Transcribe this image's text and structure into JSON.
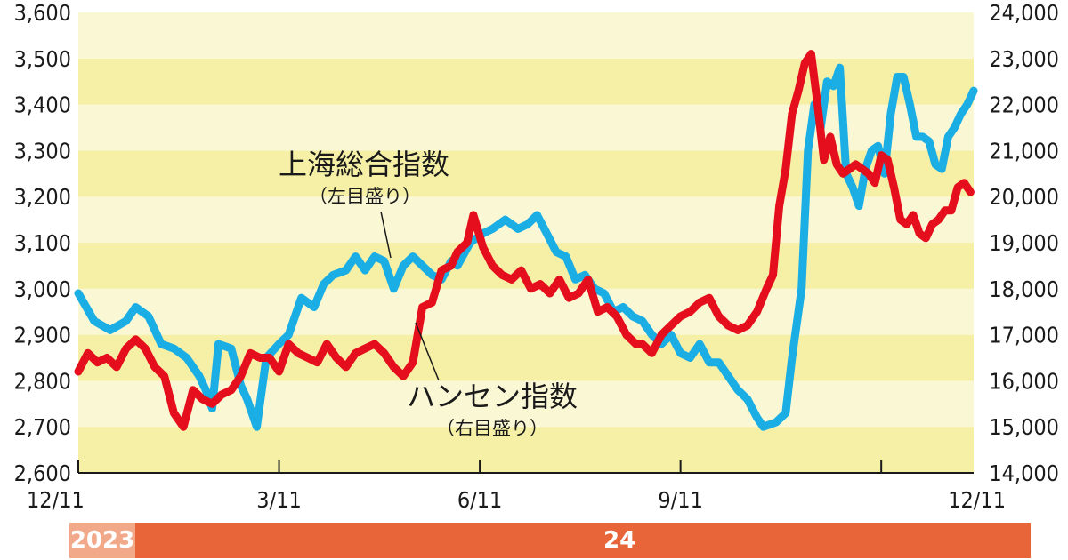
{
  "chart_data": {
    "type": "line",
    "background_bands": [
      "#f5f0a6",
      "#faf7d4"
    ],
    "x_ticks": [
      "12/11",
      "3/11",
      "6/11",
      "9/11",
      "12/11"
    ],
    "x_tick_index": [
      0,
      63,
      126,
      189,
      252
    ],
    "y_left": {
      "min": 2600,
      "max": 3600,
      "step": 100,
      "ticks": [
        "2,600",
        "2,700",
        "2,800",
        "2,900",
        "3,000",
        "3,100",
        "3,200",
        "3,300",
        "3,400",
        "3,500",
        "3,600"
      ]
    },
    "y_right": {
      "min": 14000,
      "max": 24000,
      "step": 1000,
      "ticks": [
        "14,000",
        "15,000",
        "16,000",
        "17,000",
        "18,000",
        "19,000",
        "20,000",
        "21,000",
        "22,000",
        "23,000",
        "24,000"
      ]
    },
    "series": [
      {
        "name": "上海総合指数",
        "axis": "left",
        "color": "#1aaee5",
        "points": [
          [
            0,
            2990
          ],
          [
            5,
            2930
          ],
          [
            10,
            2910
          ],
          [
            15,
            2930
          ],
          [
            18,
            2960
          ],
          [
            22,
            2940
          ],
          [
            26,
            2880
          ],
          [
            30,
            2870
          ],
          [
            34,
            2850
          ],
          [
            38,
            2810
          ],
          [
            40,
            2780
          ],
          [
            42,
            2740
          ],
          [
            44,
            2880
          ],
          [
            48,
            2870
          ],
          [
            51,
            2790
          ],
          [
            53,
            2760
          ],
          [
            56,
            2700
          ],
          [
            59,
            2850
          ],
          [
            63,
            2880
          ],
          [
            66,
            2900
          ],
          [
            70,
            2980
          ],
          [
            74,
            2960
          ],
          [
            77,
            3010
          ],
          [
            80,
            3030
          ],
          [
            84,
            3040
          ],
          [
            87,
            3070
          ],
          [
            90,
            3040
          ],
          [
            93,
            3070
          ],
          [
            96,
            3060
          ],
          [
            99,
            3000
          ],
          [
            102,
            3050
          ],
          [
            105,
            3070
          ],
          [
            108,
            3050
          ],
          [
            111,
            3030
          ],
          [
            114,
            3020
          ],
          [
            117,
            3060
          ],
          [
            119,
            3050
          ],
          [
            123,
            3100
          ],
          [
            127,
            3120
          ],
          [
            130,
            3130
          ],
          [
            134,
            3150
          ],
          [
            138,
            3130
          ],
          [
            141,
            3140
          ],
          [
            144,
            3160
          ],
          [
            147,
            3120
          ],
          [
            150,
            3080
          ],
          [
            153,
            3070
          ],
          [
            156,
            3020
          ],
          [
            159,
            3030
          ],
          [
            162,
            3000
          ],
          [
            165,
            2990
          ],
          [
            168,
            2950
          ],
          [
            171,
            2960
          ],
          [
            174,
            2940
          ],
          [
            177,
            2930
          ],
          [
            180,
            2900
          ],
          [
            183,
            2880
          ],
          [
            186,
            2900
          ],
          [
            189,
            2860
          ],
          [
            192,
            2850
          ],
          [
            195,
            2880
          ],
          [
            198,
            2840
          ],
          [
            201,
            2840
          ],
          [
            204,
            2810
          ],
          [
            207,
            2780
          ],
          [
            210,
            2760
          ],
          [
            213,
            2720
          ],
          [
            215,
            2700
          ],
          [
            219,
            2710
          ],
          [
            222,
            2730
          ],
          [
            224,
            2850
          ],
          [
            227,
            3000
          ],
          [
            229,
            3300
          ],
          [
            231,
            3400
          ],
          [
            233,
            3350
          ],
          [
            235,
            3450
          ],
          [
            237,
            3440
          ],
          [
            239,
            3480
          ],
          [
            241,
            3250
          ],
          [
            243,
            3220
          ],
          [
            245,
            3180
          ],
          [
            247,
            3260
          ],
          [
            249,
            3300
          ],
          [
            251,
            3310
          ],
          [
            253,
            3250
          ],
          [
            255,
            3380
          ],
          [
            257,
            3460
          ],
          [
            259,
            3460
          ],
          [
            261,
            3400
          ],
          [
            263,
            3330
          ],
          [
            265,
            3330
          ],
          [
            267,
            3320
          ],
          [
            269,
            3270
          ],
          [
            271,
            3260
          ],
          [
            273,
            3330
          ],
          [
            275,
            3350
          ],
          [
            277,
            3380
          ],
          [
            279,
            3400
          ],
          [
            281,
            3430
          ]
        ]
      },
      {
        "name": "ハンセン指数",
        "axis": "right",
        "color": "#e50e1c",
        "points": [
          [
            0,
            16200
          ],
          [
            3,
            16600
          ],
          [
            6,
            16400
          ],
          [
            9,
            16500
          ],
          [
            12,
            16300
          ],
          [
            15,
            16700
          ],
          [
            18,
            16900
          ],
          [
            21,
            16700
          ],
          [
            24,
            16300
          ],
          [
            27,
            16100
          ],
          [
            30,
            15300
          ],
          [
            33,
            15000
          ],
          [
            36,
            15800
          ],
          [
            39,
            15600
          ],
          [
            42,
            15500
          ],
          [
            45,
            15700
          ],
          [
            48,
            15800
          ],
          [
            51,
            16100
          ],
          [
            54,
            16600
          ],
          [
            57,
            16500
          ],
          [
            60,
            16500
          ],
          [
            63,
            16200
          ],
          [
            66,
            16800
          ],
          [
            69,
            16600
          ],
          [
            72,
            16500
          ],
          [
            75,
            16400
          ],
          [
            78,
            16800
          ],
          [
            81,
            16500
          ],
          [
            84,
            16300
          ],
          [
            87,
            16600
          ],
          [
            90,
            16700
          ],
          [
            93,
            16800
          ],
          [
            96,
            16600
          ],
          [
            99,
            16300
          ],
          [
            102,
            16100
          ],
          [
            105,
            16400
          ],
          [
            108,
            17600
          ],
          [
            111,
            17700
          ],
          [
            114,
            18400
          ],
          [
            117,
            18500
          ],
          [
            119,
            18800
          ],
          [
            122,
            19000
          ],
          [
            124,
            19600
          ],
          [
            127,
            18900
          ],
          [
            130,
            18500
          ],
          [
            133,
            18300
          ],
          [
            136,
            18200
          ],
          [
            139,
            18400
          ],
          [
            142,
            18000
          ],
          [
            145,
            18100
          ],
          [
            148,
            17900
          ],
          [
            151,
            18200
          ],
          [
            154,
            17800
          ],
          [
            157,
            17900
          ],
          [
            160,
            18200
          ],
          [
            163,
            17500
          ],
          [
            166,
            17600
          ],
          [
            169,
            17400
          ],
          [
            172,
            17000
          ],
          [
            175,
            16800
          ],
          [
            177,
            16800
          ],
          [
            180,
            16600
          ],
          [
            183,
            17000
          ],
          [
            186,
            17200
          ],
          [
            189,
            17400
          ],
          [
            192,
            17500
          ],
          [
            195,
            17700
          ],
          [
            198,
            17800
          ],
          [
            201,
            17400
          ],
          [
            204,
            17200
          ],
          [
            207,
            17100
          ],
          [
            210,
            17200
          ],
          [
            213,
            17500
          ],
          [
            216,
            18000
          ],
          [
            218,
            18300
          ],
          [
            220,
            19800
          ],
          [
            222,
            20600
          ],
          [
            224,
            21800
          ],
          [
            226,
            22300
          ],
          [
            228,
            22900
          ],
          [
            230,
            23100
          ],
          [
            232,
            22000
          ],
          [
            234,
            20800
          ],
          [
            236,
            21300
          ],
          [
            238,
            20700
          ],
          [
            240,
            20500
          ],
          [
            242,
            20600
          ],
          [
            244,
            20700
          ],
          [
            246,
            20600
          ],
          [
            248,
            20500
          ],
          [
            250,
            20300
          ],
          [
            252,
            20900
          ],
          [
            254,
            20800
          ],
          [
            256,
            20200
          ],
          [
            258,
            19500
          ],
          [
            260,
            19400
          ],
          [
            262,
            19600
          ],
          [
            264,
            19200
          ],
          [
            266,
            19100
          ],
          [
            268,
            19400
          ],
          [
            270,
            19500
          ],
          [
            272,
            19700
          ],
          [
            274,
            19700
          ],
          [
            276,
            20200
          ],
          [
            278,
            20300
          ],
          [
            280,
            20100
          ]
        ]
      }
    ],
    "annotations": [
      {
        "title": "上海総合指数",
        "sub": "（左目盛り）"
      },
      {
        "title": "ハンセン指数",
        "sub": "（右目盛り）"
      }
    ],
    "years": {
      "first": "2023",
      "second": "24"
    }
  }
}
